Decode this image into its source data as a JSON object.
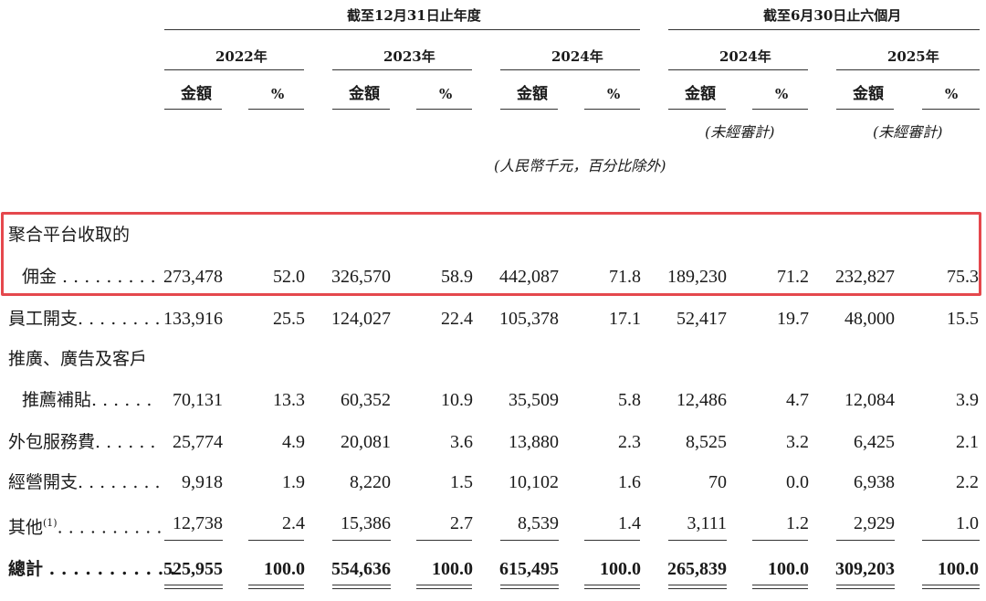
{
  "header": {
    "group1": "截至12月31日止年度",
    "group2": "截至6月30日止六個月",
    "years": [
      "2022年",
      "2023年",
      "2024年",
      "2024年",
      "2025年"
    ],
    "amount": "金額",
    "pct": "%",
    "unaudited": "(未經審計)",
    "unit_note": "(人民幣千元，百分比除外)"
  },
  "rows": [
    {
      "label1": "聚合平台收取的",
      "label2": "佣金 . . . . . . . . .",
      "values": [
        "273,478",
        "52.0",
        "326,570",
        "58.9",
        "442,087",
        "71.8",
        "189,230",
        "71.2",
        "232,827",
        "75.3"
      ]
    },
    {
      "label": "員工開支. . . . . . . .",
      "values": [
        "133,916",
        "25.5",
        "124,027",
        "22.4",
        "105,378",
        "17.1",
        "52,417",
        "19.7",
        "48,000",
        "15.5"
      ]
    },
    {
      "label1": "推廣、廣告及客戶",
      "label2": "推薦補貼. . . . . .",
      "values": [
        "70,131",
        "13.3",
        "60,352",
        "10.9",
        "35,509",
        "5.8",
        "12,486",
        "4.7",
        "12,084",
        "3.9"
      ]
    },
    {
      "label": "外包服務費. . . . . .",
      "values": [
        "25,774",
        "4.9",
        "20,081",
        "3.6",
        "13,880",
        "2.3",
        "8,525",
        "3.2",
        "6,425",
        "2.1"
      ]
    },
    {
      "label": "經營開支. . . . . . . .",
      "values": [
        "9,918",
        "1.9",
        "8,220",
        "1.5",
        "10,102",
        "1.6",
        "70",
        "0.0",
        "6,938",
        "2.2"
      ]
    },
    {
      "label": "其他",
      "label_sup": "(1)",
      "label_dots": ". . . . . . . . . .",
      "values": [
        "12,738",
        "2.4",
        "15,386",
        "2.7",
        "8,539",
        "1.4",
        "3,111",
        "1.2",
        "2,929",
        "1.0"
      ]
    },
    {
      "label": "總計 . . . . . . . . . . .",
      "values": [
        "525,955",
        "100.0",
        "554,636",
        "100.0",
        "615,495",
        "100.0",
        "265,839",
        "100.0",
        "309,203",
        "100.0"
      ]
    }
  ]
}
